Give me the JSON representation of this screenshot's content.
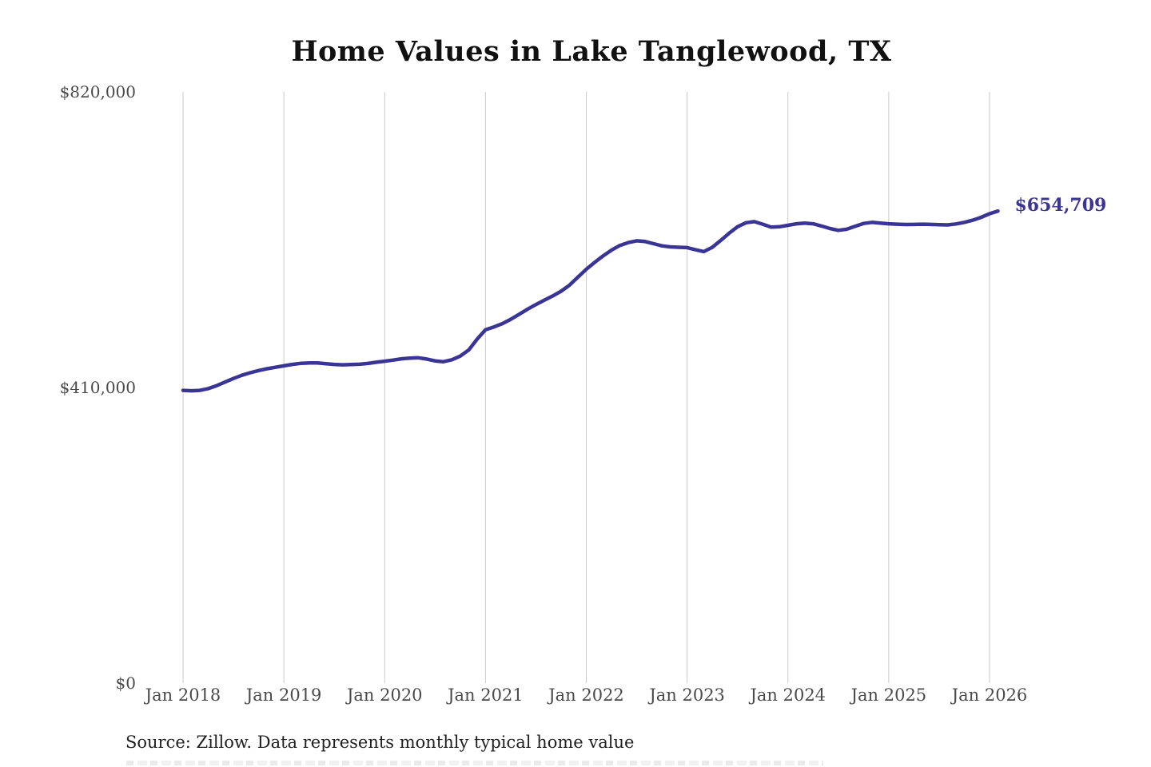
{
  "page": {
    "title": "Home Values in Lake Tanglewood, TX",
    "source_note": "Source: Zillow. Data represents monthly typical home value"
  },
  "chart_data": {
    "type": "line",
    "title": "Home Values in Lake Tanglewood, TX",
    "series_name": "Monthly typical home value",
    "unit": "USD",
    "frequency": "monthly",
    "x_start": "2018-01",
    "x_end": "2026-02",
    "ylim": [
      0,
      820000
    ],
    "grid": "vertical-only",
    "legend": "none",
    "line_color": "#3a3494",
    "gridline_color": "#cacaca",
    "end_label": "$654,709",
    "end_value": 654709,
    "y_ticks": [
      {
        "label": "$820,000",
        "value": 820000
      },
      {
        "label": "$410,000",
        "value": 410000
      },
      {
        "label": "$0",
        "value": 0
      }
    ],
    "x_tick_labels": [
      "Jan 2018",
      "Jan 2019",
      "Jan 2020",
      "Jan 2021",
      "Jan 2022",
      "Jan 2023",
      "Jan 2024",
      "Jan 2025",
      "Jan 2026"
    ],
    "values": [
      406000,
      405500,
      406000,
      408500,
      412500,
      417500,
      422500,
      427000,
      430500,
      433500,
      436000,
      438000,
      440000,
      442000,
      443500,
      444000,
      444000,
      443000,
      442000,
      441500,
      441800,
      442300,
      443300,
      445000,
      446500,
      448000,
      449800,
      450800,
      451200,
      449500,
      446900,
      445800,
      448500,
      453500,
      462000,
      477000,
      490000,
      494000,
      498500,
      504500,
      511500,
      518500,
      525000,
      531000,
      537000,
      543500,
      552000,
      563000,
      574000,
      583500,
      592500,
      600500,
      607000,
      611000,
      613500,
      612500,
      609500,
      606500,
      605000,
      604500,
      604000,
      601000,
      598500,
      604500,
      614000,
      624000,
      633000,
      638500,
      640000,
      636500,
      632500,
      633000,
      635000,
      637000,
      638000,
      637000,
      634000,
      630500,
      628000,
      629500,
      633500,
      637500,
      639000,
      638000,
      637000,
      636500,
      636000,
      636200,
      636500,
      636200,
      635800,
      635500,
      636800,
      639000,
      642000,
      646000,
      651000,
      654709
    ]
  }
}
